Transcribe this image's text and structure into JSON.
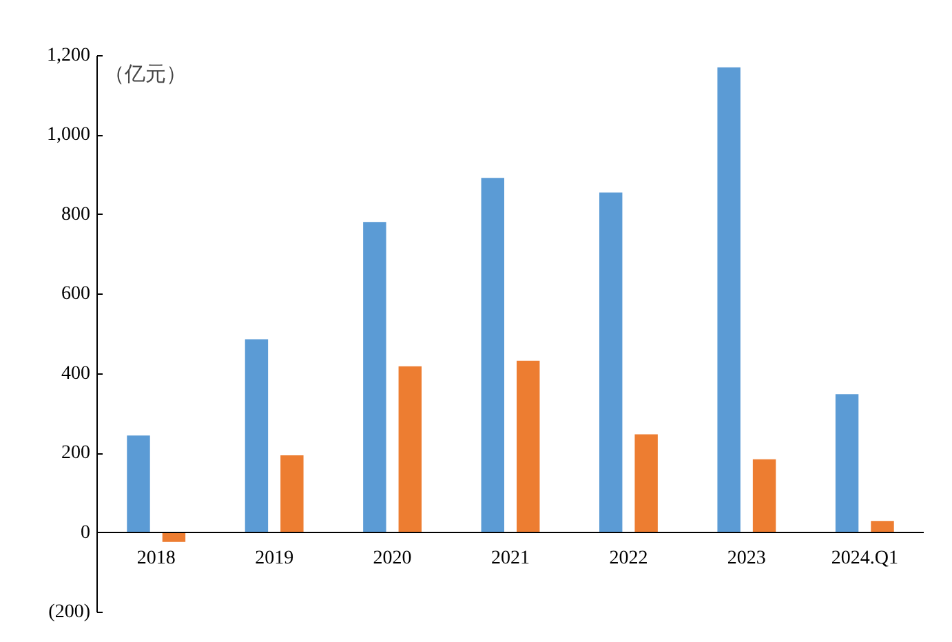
{
  "chart_data": {
    "type": "bar",
    "ylabel": "（亿元）",
    "categories": [
      "2018",
      "2019",
      "2020",
      "2021",
      "2022",
      "2023",
      "2024.Q1"
    ],
    "series": [
      {
        "color": "#5b9bd5",
        "values": [
          245,
          487,
          782,
          893,
          856,
          1171,
          349
        ]
      },
      {
        "color": "#ed7d31",
        "values": [
          -23,
          195,
          419,
          433,
          248,
          185,
          30
        ]
      }
    ],
    "ylim": [
      -200,
      1200
    ],
    "yticks": [
      {
        "value": -200,
        "label": "(200)"
      },
      0,
      200,
      400,
      600,
      800,
      {
        "value": 1000,
        "label": "1,000"
      },
      {
        "value": 1200,
        "label": "1,200"
      }
    ],
    "grid": false
  }
}
